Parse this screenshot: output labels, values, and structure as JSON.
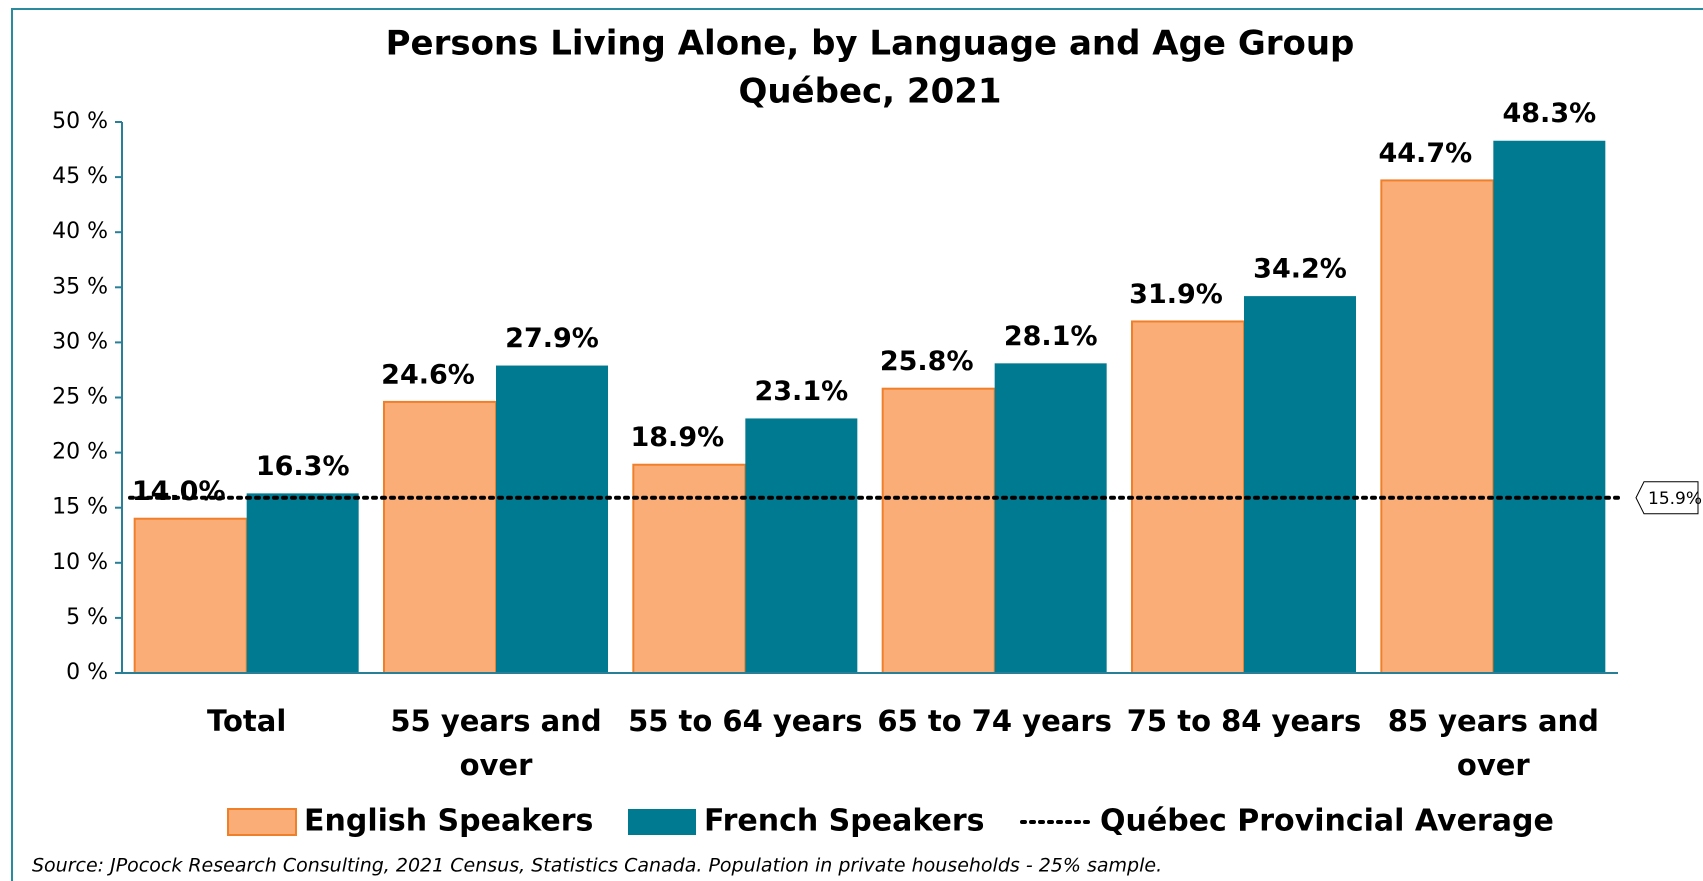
{
  "chart_data": {
    "type": "bar",
    "title": "Persons Living Alone, by Language and Age Group",
    "subtitle": "Québec, 2021",
    "categories": [
      "Total",
      "55 years and over",
      "55 to 64 years",
      "65 to 74 years",
      "75 to 84 years",
      "85 years and over"
    ],
    "series": [
      {
        "name": "English Speakers",
        "color": "#fbad78",
        "stroke": "#f07f2a",
        "values": [
          14.0,
          24.6,
          18.9,
          25.8,
          31.9,
          44.7
        ],
        "value_labels": [
          "14.0%",
          "24.6%",
          "18.9%",
          "25.8%",
          "31.9%",
          "44.7%"
        ]
      },
      {
        "name": "French Speakers",
        "color": "#007a91",
        "values": [
          16.3,
          27.9,
          23.1,
          28.1,
          34.2,
          48.3
        ],
        "value_labels": [
          "16.3%",
          "27.9%",
          "23.1%",
          "28.1%",
          "34.2%",
          "48.3%"
        ]
      }
    ],
    "average": {
      "name": "Québec Provincial Average",
      "value": 15.9,
      "value_label": "15.9%"
    },
    "ylim": [
      0,
      50
    ],
    "yticks": [
      {
        "value": 0,
        "label": "0 %"
      },
      {
        "value": 5,
        "label": "5 %"
      },
      {
        "value": 10,
        "label": "10 %"
      },
      {
        "value": 15,
        "label": "15 %"
      },
      {
        "value": 20,
        "label": "20 %"
      },
      {
        "value": 25,
        "label": "25 %"
      },
      {
        "value": 30,
        "label": "30 %"
      },
      {
        "value": 35,
        "label": "35 %"
      },
      {
        "value": 40,
        "label": "40 %"
      },
      {
        "value": 45,
        "label": "45 %"
      },
      {
        "value": 50,
        "label": "50 %"
      }
    ],
    "source": "Source: JPocock Research Consulting, 2021 Census, Statistics Canada. Population in private households - 25% sample."
  }
}
